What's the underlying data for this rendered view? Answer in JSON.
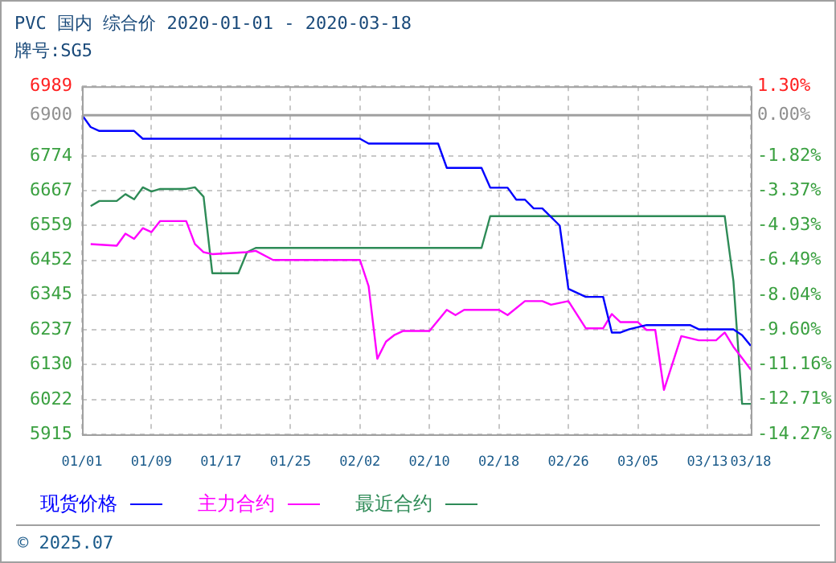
{
  "chart_data": {
    "type": "line",
    "title": "PVC 国内 综合价 2020-01-01 - 2020-03-18",
    "subtitle": "牌号:SG5",
    "annotations": [
      "© 2025.07"
    ],
    "xlim": [
      "2020-01-01",
      "2020-03-18"
    ],
    "xticks": [
      {
        "value": "2020-01-01",
        "label": "01/01"
      },
      {
        "value": "2020-01-09",
        "label": "01/09"
      },
      {
        "value": "2020-01-17",
        "label": "01/17"
      },
      {
        "value": "2020-01-25",
        "label": "01/25"
      },
      {
        "value": "2020-02-02",
        "label": "02/02"
      },
      {
        "value": "2020-02-10",
        "label": "02/10"
      },
      {
        "value": "2020-02-18",
        "label": "02/18"
      },
      {
        "value": "2020-02-26",
        "label": "02/26"
      },
      {
        "value": "2020-03-05",
        "label": "03/05"
      },
      {
        "value": "2020-03-13",
        "label": "03/13"
      },
      {
        "value": "2020-03-18",
        "label": "03/18"
      }
    ],
    "ylim": [
      5915,
      6989
    ],
    "yticks": [
      5915,
      6022,
      6130,
      6237,
      6345,
      6452,
      6559,
      6667,
      6774,
      6900,
      6989
    ],
    "y2lim": [
      -14.27,
      1.3
    ],
    "y2ticks": [
      {
        "value": -14.27,
        "label": "-14.27%"
      },
      {
        "value": -12.71,
        "label": "-12.71%"
      },
      {
        "value": -11.16,
        "label": "-11.16%"
      },
      {
        "value": -9.6,
        "label": "-9.60%"
      },
      {
        "value": -8.04,
        "label": "-8.04%"
      },
      {
        "value": -6.49,
        "label": "-6.49%"
      },
      {
        "value": -4.93,
        "label": "-4.93%"
      },
      {
        "value": -3.37,
        "label": "-3.37%"
      },
      {
        "value": -1.82,
        "label": "-1.82%"
      },
      {
        "value": 0,
        "label": "0.00%"
      },
      {
        "value": 1.3,
        "label": "1.30%"
      }
    ],
    "ref_lines": [
      {
        "axis": "y2",
        "value": 0,
        "color": "#a0a0a0"
      }
    ],
    "grid": true,
    "legend": "bottom",
    "marker": "none",
    "line_style": "solid",
    "series": [
      {
        "name": "现货价格",
        "color": "#0000ff",
        "x": [
          "2020-01-01",
          "2020-01-02",
          "2020-01-03",
          "2020-01-07",
          "2020-01-08",
          "2020-02-02",
          "2020-02-03",
          "2020-02-11",
          "2020-02-12",
          "2020-02-16",
          "2020-02-17",
          "2020-02-19",
          "2020-02-20",
          "2020-02-21",
          "2020-02-22",
          "2020-02-23",
          "2020-02-25",
          "2020-02-26",
          "2020-02-28",
          "2020-03-01",
          "2020-03-02",
          "2020-03-03",
          "2020-03-04",
          "2020-03-06",
          "2020-03-11",
          "2020-03-12",
          "2020-03-16",
          "2020-03-17",
          "2020-03-18"
        ],
        "values": [
          6900,
          6863,
          6851,
          6851,
          6827,
          6827,
          6812,
          6812,
          6737,
          6737,
          6676,
          6676,
          6639,
          6639,
          6612,
          6612,
          6559,
          6364,
          6339,
          6339,
          6229,
          6229,
          6239,
          6252,
          6252,
          6239,
          6239,
          6221,
          6188
        ]
      },
      {
        "name": "主力合约",
        "color": "#ff00ff",
        "x": [
          "2020-01-02",
          "2020-01-05",
          "2020-01-06",
          "2020-01-07",
          "2020-01-08",
          "2020-01-09",
          "2020-01-10",
          "2020-01-13",
          "2020-01-14",
          "2020-01-15",
          "2020-01-16",
          "2020-01-20",
          "2020-01-21",
          "2020-01-23",
          "2020-02-02",
          "2020-02-03",
          "2020-02-04",
          "2020-02-05",
          "2020-02-06",
          "2020-02-07",
          "2020-02-10",
          "2020-02-12",
          "2020-02-13",
          "2020-02-14",
          "2020-02-18",
          "2020-02-19",
          "2020-02-21",
          "2020-02-23",
          "2020-02-24",
          "2020-02-26",
          "2020-02-28",
          "2020-03-01",
          "2020-03-02",
          "2020-03-03",
          "2020-03-05",
          "2020-03-06",
          "2020-03-07",
          "2020-03-08",
          "2020-03-10",
          "2020-03-12",
          "2020-03-14",
          "2020-03-15",
          "2020-03-16",
          "2020-03-17",
          "2020-03-18"
        ],
        "values": [
          6502,
          6497,
          6534,
          6518,
          6551,
          6539,
          6573,
          6573,
          6502,
          6477,
          6471,
          6477,
          6481,
          6453,
          6453,
          6372,
          6148,
          6201,
          6222,
          6234,
          6234,
          6299,
          6283,
          6299,
          6299,
          6283,
          6326,
          6326,
          6315,
          6326,
          6242,
          6242,
          6286,
          6261,
          6261,
          6237,
          6237,
          6052,
          6218,
          6205,
          6205,
          6229,
          6185,
          6150,
          6115
        ]
      },
      {
        "name": "最近合约",
        "color": "#2e8b57",
        "x": [
          "2020-01-02",
          "2020-01-03",
          "2020-01-05",
          "2020-01-06",
          "2020-01-07",
          "2020-01-08",
          "2020-01-09",
          "2020-01-10",
          "2020-01-13",
          "2020-01-14",
          "2020-01-15",
          "2020-01-16",
          "2020-01-19",
          "2020-01-20",
          "2020-01-21",
          "2020-02-16",
          "2020-02-17",
          "2020-03-15",
          "2020-03-16",
          "2020-03-17",
          "2020-03-18"
        ],
        "values": [
          6619,
          6635,
          6635,
          6656,
          6640,
          6677,
          6664,
          6672,
          6672,
          6677,
          6648,
          6412,
          6412,
          6477,
          6490,
          6490,
          6588,
          6588,
          6388,
          6009,
          6009
        ]
      }
    ]
  }
}
